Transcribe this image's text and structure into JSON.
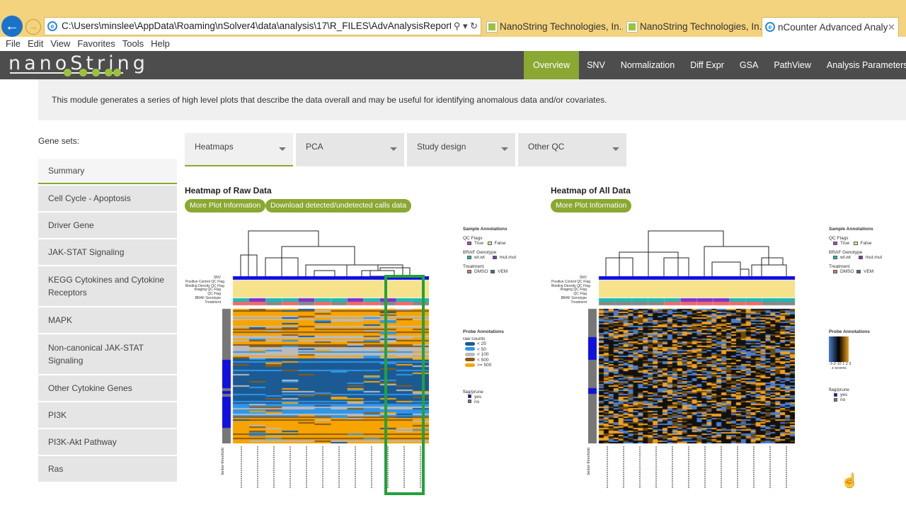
{
  "browser": {
    "address": "C:\\Users\\minslee\\AppData\\Roaming\\nSolver4\\data\\analysis\\17\\R_FILES\\AdvAnalysisReport.htr",
    "tabs": [
      {
        "label": "NanoString Technologies, In..."
      },
      {
        "label": "NanoString Technologies, In..."
      },
      {
        "label": "nCounter Advanced Analy...",
        "active": true
      }
    ],
    "menu": [
      "File",
      "Edit",
      "View",
      "Favorites",
      "Tools",
      "Help"
    ]
  },
  "brand": {
    "logo": "nanoString",
    "accent": "#8aa832"
  },
  "nav": [
    "Overview",
    "SNV",
    "Normalization",
    "Diff Expr",
    "GSA",
    "PathView",
    "Analysis Parameters"
  ],
  "intro": "This module generates a series of high level plots that describe the data overall and may be useful for identifying anomalous data and/or covariates.",
  "gene_sets_label": "Gene sets:",
  "gene_sets": [
    "Summary",
    "Cell Cycle - Apoptosis",
    "Driver Gene",
    "JAK-STAT Signaling",
    "KEGG Cytokines and Cytokine Receptors",
    "MAPK",
    "Non-canonical JAK-STAT Signaling",
    "Other Cytokine Genes",
    "PI3K",
    "PI3K-Akt Pathway",
    "Ras"
  ],
  "dropdowns": [
    "Heatmaps",
    "PCA",
    "Study design",
    "Other QC"
  ],
  "raw": {
    "title": "Heatmap of Raw Data",
    "btn1": "More Plot Information",
    "btn2": "Download detected/undetected calls data"
  },
  "all": {
    "title": "Heatmap of All Data",
    "btn1": "More Plot Information"
  },
  "annotation_rows": [
    "SNV",
    "Positive Control QC Flag",
    "Binding Density QC Flag",
    "Imaging QC Flag",
    "QC Flag",
    "BRAF Genotype",
    "Treatment"
  ],
  "legend": {
    "sample_title": "Sample Annotations",
    "qc": "QC Flags",
    "qc_true": "True",
    "qc_false": "False",
    "braf": "BRAF Genotype",
    "braf_wt": "wt.wt",
    "braf_mut": "mut.mut",
    "treat": "Treatment",
    "treat_dmso": "DMSO",
    "treat_vem": "VEM",
    "probe_title": "Probe Annotations",
    "raw_counts": "raw counts",
    "counts": [
      "< 25",
      "< 50",
      "< 100",
      "< 500",
      ">= 500"
    ],
    "count_colors": [
      "#1b5a93",
      "#2f95e8",
      "#bbbbbb",
      "#8a5a14",
      "#f7a400"
    ],
    "zscale": "-3-2-10 1 2 3",
    "zlabel": "z-scores",
    "flag": "flag/prune",
    "flag_yes": "yes",
    "flag_no": "no"
  },
  "below_threshold": "below threshold"
}
